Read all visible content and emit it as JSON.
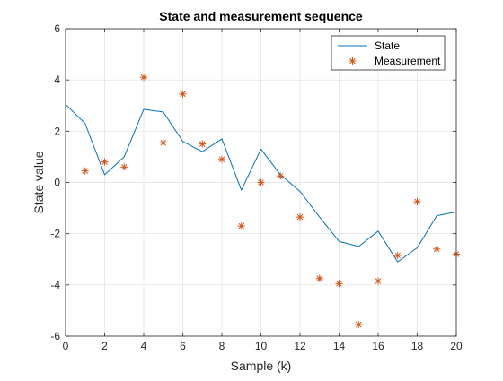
{
  "chart_data": {
    "type": "line",
    "title": "State and measurement sequence",
    "xlabel": "Sample (k)",
    "ylabel": "State value",
    "xlim": [
      0,
      20
    ],
    "ylim": [
      -6,
      6
    ],
    "x_ticks": [
      0,
      2,
      4,
      6,
      8,
      10,
      12,
      14,
      16,
      18,
      20
    ],
    "y_ticks": [
      -6,
      -4,
      -2,
      0,
      2,
      4,
      6
    ],
    "grid": true,
    "legend_position": "top-right",
    "series": [
      {
        "name": "State",
        "style": "line",
        "color": "#0072BD",
        "x": [
          0,
          1,
          2,
          3,
          4,
          5,
          6,
          7,
          8,
          9,
          10,
          11,
          12,
          13,
          14,
          15,
          16,
          17,
          18,
          19,
          20
        ],
        "y": [
          3.05,
          2.3,
          0.3,
          1.0,
          2.85,
          2.75,
          1.6,
          1.2,
          1.7,
          -0.3,
          1.3,
          0.3,
          -0.35,
          -1.35,
          -2.3,
          -2.5,
          -1.9,
          -3.1,
          -2.55,
          -1.3,
          -1.15
        ]
      },
      {
        "name": "Measurement",
        "style": "marker",
        "marker": "asterisk",
        "color": "#D95319",
        "x": [
          1,
          2,
          3,
          4,
          5,
          6,
          7,
          8,
          9,
          10,
          11,
          12,
          13,
          14,
          15,
          16,
          17,
          18,
          19,
          20
        ],
        "y": [
          0.45,
          0.8,
          0.6,
          4.1,
          1.55,
          3.45,
          1.5,
          0.9,
          -1.7,
          0.0,
          0.25,
          -1.35,
          -3.75,
          -3.95,
          -5.55,
          -3.85,
          -2.85,
          -0.75,
          -2.6,
          -2.8
        ]
      }
    ]
  }
}
